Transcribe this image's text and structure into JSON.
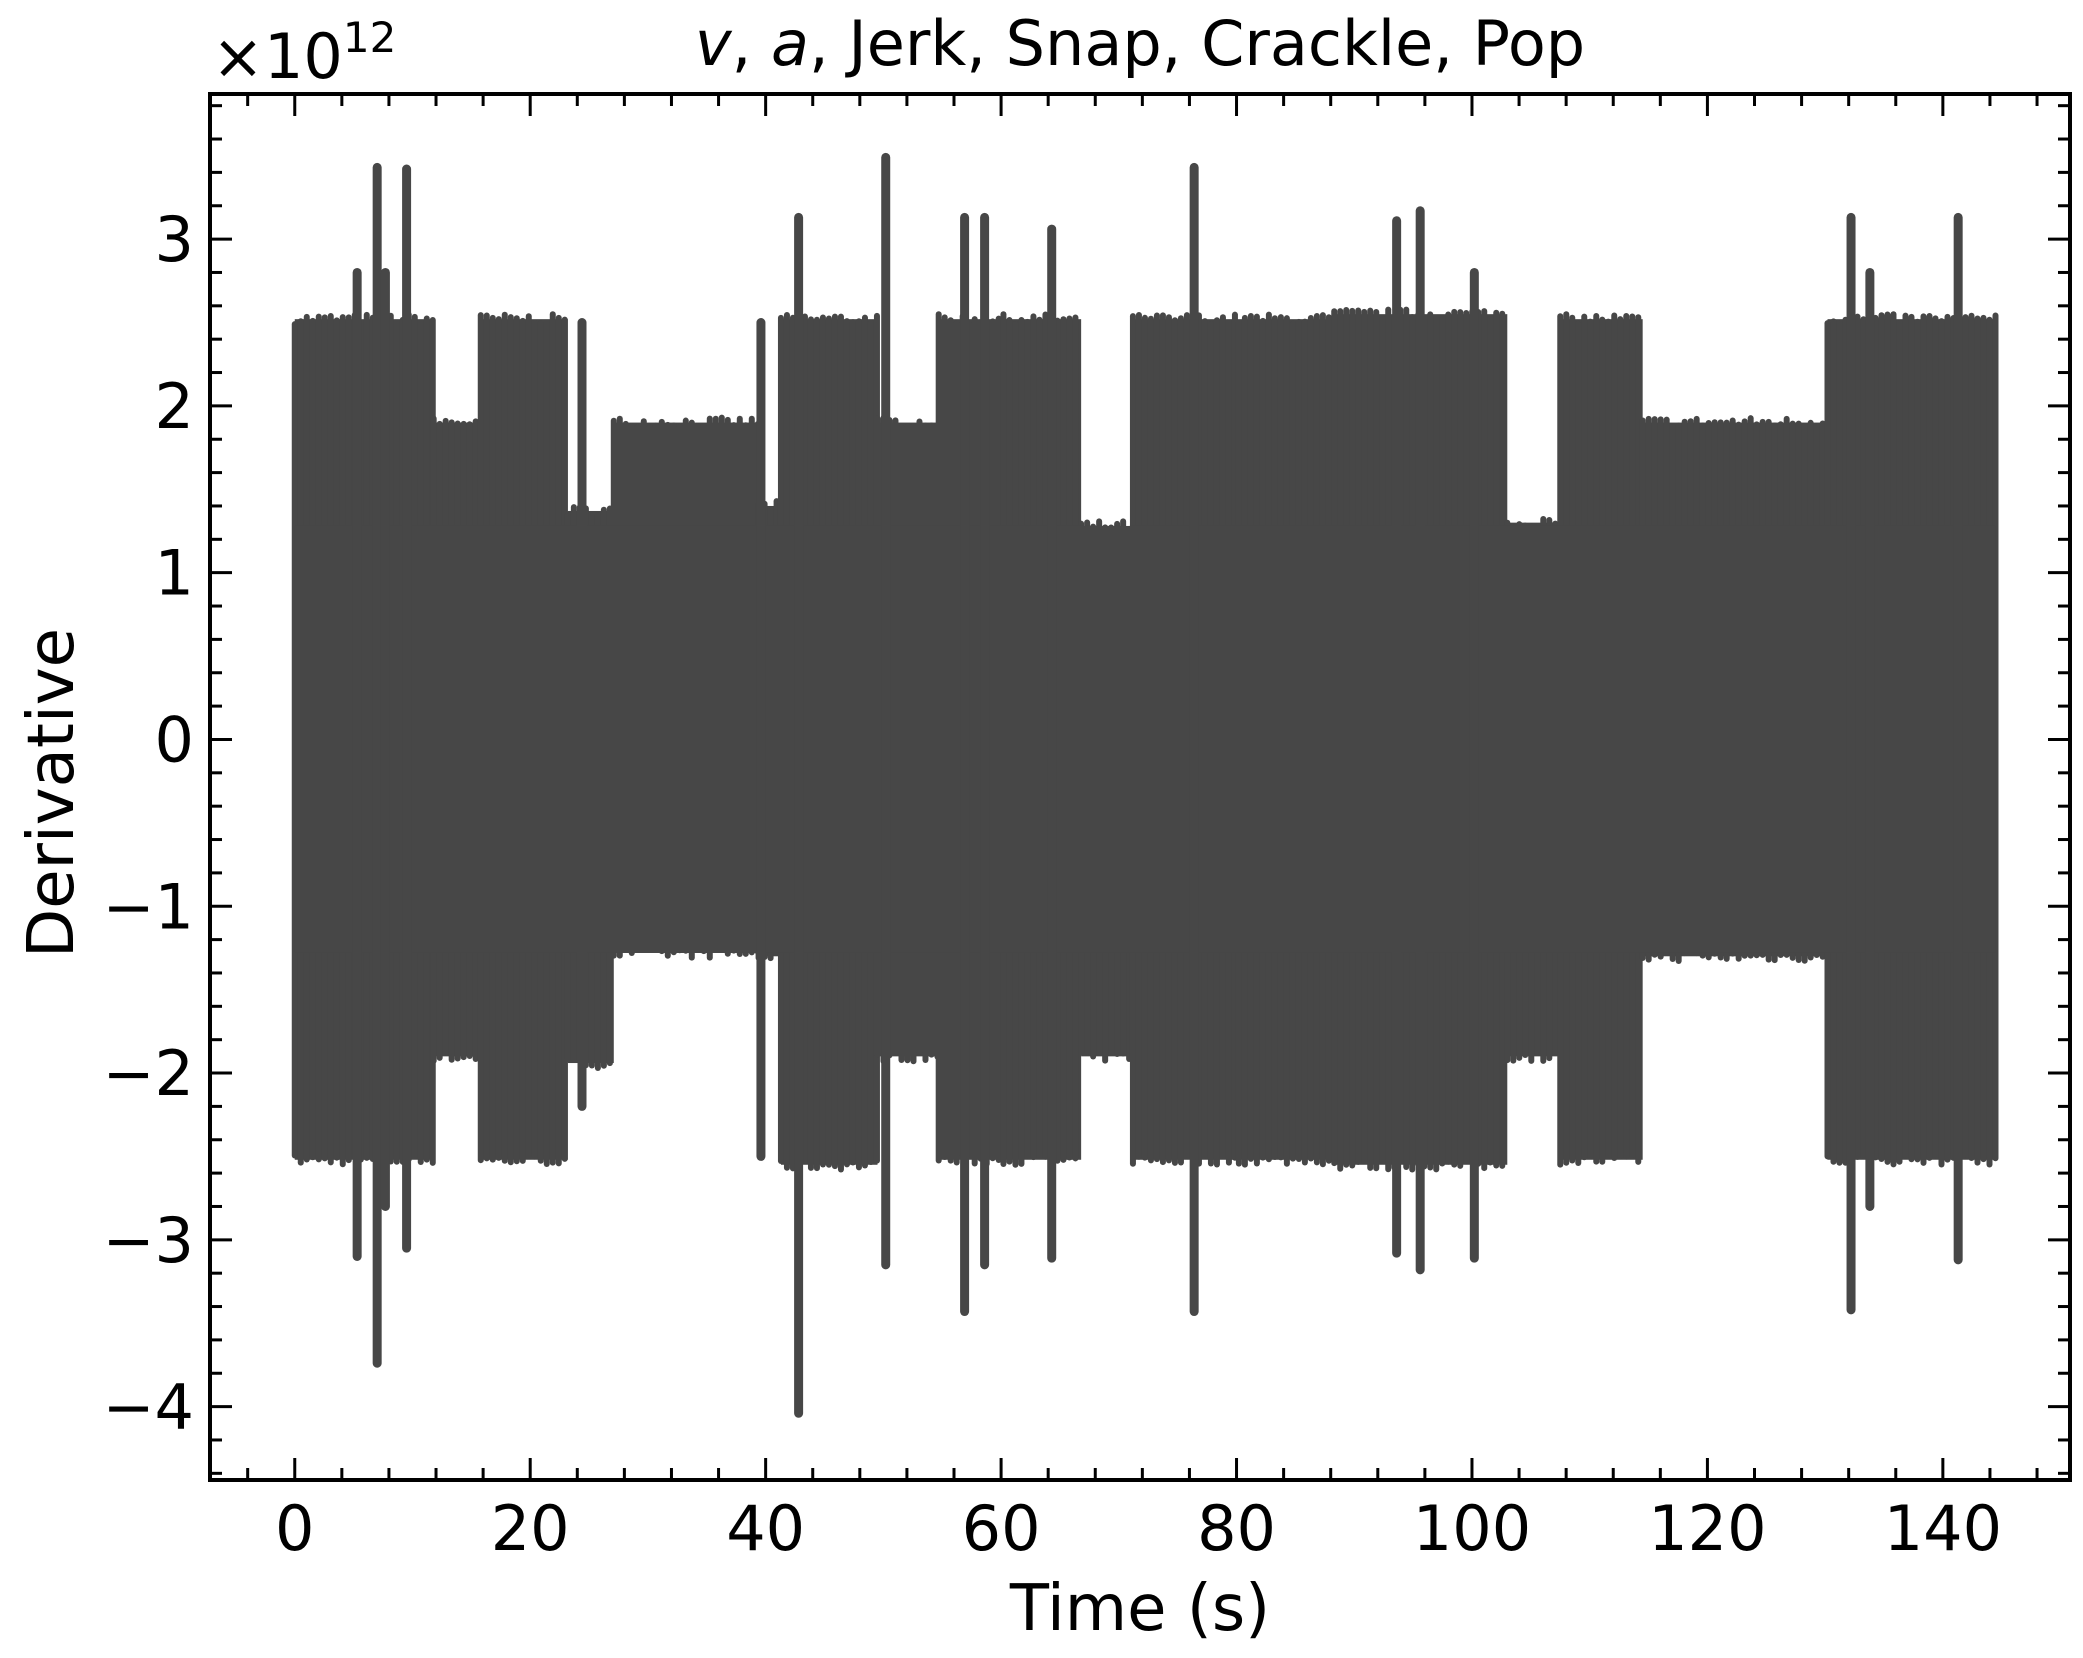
{
  "chart_data": {
    "type": "line",
    "title": {
      "prefix_italic_1": "v",
      "sep_1": ", ",
      "prefix_italic_2": "a",
      "rest": ",  Jerk, Snap, Crackle, Pop"
    },
    "xlabel": "Time (s)",
    "ylabel": "Derivative",
    "y_multiplier": {
      "base": "×10",
      "exponent": "12"
    },
    "xlim": [
      -7.2,
      150.8
    ],
    "ylim": [
      -4.44,
      3.87
    ],
    "y_units_scale": 1000000000000.0,
    "x_ticks": [
      0,
      20,
      40,
      60,
      80,
      100,
      120,
      140
    ],
    "x_tick_labels": [
      "0",
      "20",
      "40",
      "60",
      "80",
      "100",
      "120",
      "140"
    ],
    "y_ticks": [
      -4,
      -3,
      -2,
      -1,
      0,
      1,
      2,
      3
    ],
    "y_tick_labels": [
      "−4",
      "−3",
      "−2",
      "−1",
      "0",
      "1",
      "2",
      "3"
    ],
    "grid": false,
    "line_color": "#474747",
    "series": [
      {
        "values_note": "dense oscillating signal, values in units of 1e12",
        "bands": [
          {
            "x": [
              0,
              11.8
            ],
            "hi": 2.52,
            "lo": -2.52
          },
          {
            "x": [
              11.8,
              15.8
            ],
            "hi": 1.9,
            "lo": -1.9
          },
          {
            "x": [
              15.8,
              23.2
            ],
            "hi": 2.52,
            "lo": -2.52
          },
          {
            "x": [
              23.2,
              27.1
            ],
            "hi": 1.37,
            "lo": -1.94
          },
          {
            "x": [
              27.1,
              39.4
            ],
            "hi": 1.9,
            "lo": -1.28
          },
          {
            "x": [
              39.4,
              41.3
            ],
            "hi": 1.4,
            "lo": -1.3
          },
          {
            "x": [
              41.3,
              49.5
            ],
            "hi": 2.52,
            "lo": -2.55
          },
          {
            "x": [
              49.5,
              54.7
            ],
            "hi": 1.9,
            "lo": -1.9
          },
          {
            "x": [
              54.7,
              60.2
            ],
            "hi": 2.52,
            "lo": -2.52
          },
          {
            "x": [
              60.2,
              66.8
            ],
            "hi": 2.52,
            "lo": -2.52
          },
          {
            "x": [
              66.8,
              71.2
            ],
            "hi": 1.28,
            "lo": -1.9
          },
          {
            "x": [
              71.2,
              80.2
            ],
            "hi": 2.52,
            "lo": -2.52
          },
          {
            "x": [
              80.2,
              88.3
            ],
            "hi": 2.52,
            "lo": -2.52
          },
          {
            "x": [
              88.3,
              103.0
            ],
            "hi": 2.55,
            "lo": -2.55
          },
          {
            "x": [
              103.0,
              107.5
            ],
            "hi": 1.3,
            "lo": -1.9
          },
          {
            "x": [
              107.5,
              114.5
            ],
            "hi": 2.52,
            "lo": -2.52
          },
          {
            "x": [
              114.5,
              130.2
            ],
            "hi": 1.9,
            "lo": -1.3
          },
          {
            "x": [
              130.2,
              144.5
            ],
            "hi": 2.52,
            "lo": -2.52
          }
        ],
        "spikes": [
          {
            "x": 5.3,
            "hi": 2.8,
            "lo": -3.1
          },
          {
            "x": 7.0,
            "hi": 3.43,
            "lo": -3.74
          },
          {
            "x": 7.7,
            "hi": 2.8,
            "lo": -2.8
          },
          {
            "x": 9.5,
            "hi": 3.42,
            "lo": -3.05
          },
          {
            "x": 24.4,
            "hi": 2.5,
            "lo": -2.2
          },
          {
            "x": 39.6,
            "hi": 2.5,
            "lo": -2.5
          },
          {
            "x": 42.8,
            "hi": 3.13,
            "lo": -4.04
          },
          {
            "x": 50.2,
            "hi": 3.49,
            "lo": -3.15
          },
          {
            "x": 56.9,
            "hi": 3.13,
            "lo": -3.43
          },
          {
            "x": 58.6,
            "hi": 3.13,
            "lo": -3.15
          },
          {
            "x": 64.3,
            "hi": 3.06,
            "lo": -3.11
          },
          {
            "x": 76.4,
            "hi": 3.43,
            "lo": -3.43
          },
          {
            "x": 93.6,
            "hi": 3.11,
            "lo": -3.08
          },
          {
            "x": 95.6,
            "hi": 3.17,
            "lo": -3.18
          },
          {
            "x": 100.2,
            "hi": 2.8,
            "lo": -3.11
          },
          {
            "x": 132.2,
            "hi": 3.13,
            "lo": -3.42
          },
          {
            "x": 133.8,
            "hi": 2.8,
            "lo": -2.8
          },
          {
            "x": 141.3,
            "hi": 3.13,
            "lo": -3.12
          }
        ]
      }
    ]
  }
}
